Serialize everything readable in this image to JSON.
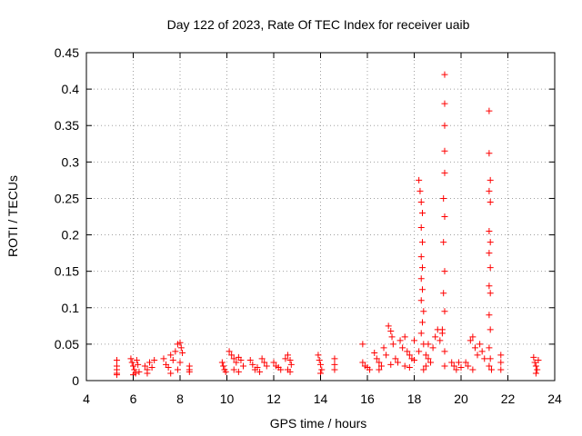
{
  "chart_data": {
    "type": "scatter",
    "title": "Day 122 of 2023, Rate Of TEC Index for receiver uaib",
    "xlabel": "GPS time / hours",
    "ylabel": "ROTI / TECUs",
    "xlim": [
      4,
      24
    ],
    "ylim": [
      0,
      0.45
    ],
    "x_ticks": [
      4,
      6,
      8,
      10,
      12,
      14,
      16,
      18,
      20,
      22,
      24
    ],
    "x_tick_labels": [
      "4",
      "6",
      "8",
      "10",
      "12",
      "14",
      "16",
      "18",
      "20",
      "22",
      "24"
    ],
    "y_ticks": [
      0,
      0.05,
      0.1,
      0.15,
      0.2,
      0.25,
      0.3,
      0.35,
      0.4,
      0.45
    ],
    "y_tick_labels": [
      "0",
      "0.05",
      "0.1",
      "0.15",
      "0.2",
      "0.25",
      "0.3",
      "0.35",
      "0.4",
      "0.45"
    ],
    "grid": true,
    "marker": "+",
    "color": "#ff0000",
    "series": [
      {
        "name": "ROTI",
        "points": [
          [
            5.3,
            0.028
          ],
          [
            5.3,
            0.02
          ],
          [
            5.3,
            0.015
          ],
          [
            5.3,
            0.01
          ],
          [
            5.3,
            0.008
          ],
          [
            5.9,
            0.03
          ],
          [
            5.95,
            0.025
          ],
          [
            6.0,
            0.02
          ],
          [
            6.05,
            0.015
          ],
          [
            6.1,
            0.01
          ],
          [
            6.15,
            0.028
          ],
          [
            6.2,
            0.022
          ],
          [
            6.25,
            0.012
          ],
          [
            6.0,
            0.008
          ],
          [
            6.5,
            0.02
          ],
          [
            6.6,
            0.015
          ],
          [
            6.7,
            0.025
          ],
          [
            6.8,
            0.018
          ],
          [
            6.9,
            0.028
          ],
          [
            6.6,
            0.01
          ],
          [
            7.3,
            0.03
          ],
          [
            7.4,
            0.022
          ],
          [
            7.5,
            0.018
          ],
          [
            7.6,
            0.035
          ],
          [
            7.7,
            0.028
          ],
          [
            7.8,
            0.04
          ],
          [
            7.9,
            0.05
          ],
          [
            8.0,
            0.052
          ],
          [
            8.05,
            0.045
          ],
          [
            8.1,
            0.038
          ],
          [
            8.0,
            0.025
          ],
          [
            7.9,
            0.015
          ],
          [
            7.6,
            0.01
          ],
          [
            8.4,
            0.02
          ],
          [
            8.4,
            0.015
          ],
          [
            8.4,
            0.012
          ],
          [
            9.8,
            0.025
          ],
          [
            9.85,
            0.02
          ],
          [
            9.9,
            0.015
          ],
          [
            9.95,
            0.012
          ],
          [
            10.1,
            0.04
          ],
          [
            10.2,
            0.035
          ],
          [
            10.3,
            0.03
          ],
          [
            10.4,
            0.025
          ],
          [
            10.5,
            0.032
          ],
          [
            10.6,
            0.028
          ],
          [
            10.7,
            0.02
          ],
          [
            10.3,
            0.015
          ],
          [
            10.5,
            0.012
          ],
          [
            11.0,
            0.028
          ],
          [
            11.1,
            0.022
          ],
          [
            11.2,
            0.015
          ],
          [
            11.3,
            0.018
          ],
          [
            11.4,
            0.012
          ],
          [
            11.5,
            0.03
          ],
          [
            11.6,
            0.025
          ],
          [
            11.7,
            0.02
          ],
          [
            12.0,
            0.025
          ],
          [
            12.1,
            0.02
          ],
          [
            12.2,
            0.018
          ],
          [
            12.3,
            0.015
          ],
          [
            12.5,
            0.03
          ],
          [
            12.6,
            0.035
          ],
          [
            12.7,
            0.028
          ],
          [
            12.75,
            0.022
          ],
          [
            12.6,
            0.015
          ],
          [
            12.7,
            0.012
          ],
          [
            13.9,
            0.035
          ],
          [
            13.95,
            0.028
          ],
          [
            14.0,
            0.022
          ],
          [
            14.05,
            0.015
          ],
          [
            14.0,
            0.01
          ],
          [
            14.6,
            0.03
          ],
          [
            14.6,
            0.022
          ],
          [
            14.6,
            0.015
          ],
          [
            15.8,
            0.05
          ],
          [
            15.8,
            0.025
          ],
          [
            15.9,
            0.02
          ],
          [
            16.0,
            0.018
          ],
          [
            16.1,
            0.015
          ],
          [
            16.3,
            0.038
          ],
          [
            16.4,
            0.03
          ],
          [
            16.5,
            0.025
          ],
          [
            16.6,
            0.02
          ],
          [
            16.7,
            0.045
          ],
          [
            16.8,
            0.035
          ],
          [
            16.9,
            0.075
          ],
          [
            17.0,
            0.068
          ],
          [
            17.05,
            0.06
          ],
          [
            17.1,
            0.05
          ],
          [
            17.2,
            0.03
          ],
          [
            17.3,
            0.025
          ],
          [
            17.4,
            0.055
          ],
          [
            17.5,
            0.045
          ],
          [
            17.6,
            0.06
          ],
          [
            17.7,
            0.04
          ],
          [
            17.8,
            0.035
          ],
          [
            17.9,
            0.03
          ],
          [
            18.0,
            0.028
          ],
          [
            18.0,
            0.055
          ],
          [
            17.6,
            0.02
          ],
          [
            17.0,
            0.022
          ],
          [
            16.5,
            0.015
          ],
          [
            17.8,
            0.018
          ],
          [
            18.2,
            0.275
          ],
          [
            18.25,
            0.26
          ],
          [
            18.3,
            0.245
          ],
          [
            18.35,
            0.23
          ],
          [
            18.3,
            0.21
          ],
          [
            18.35,
            0.19
          ],
          [
            18.3,
            0.17
          ],
          [
            18.35,
            0.155
          ],
          [
            18.3,
            0.14
          ],
          [
            18.35,
            0.125
          ],
          [
            18.3,
            0.11
          ],
          [
            18.4,
            0.095
          ],
          [
            18.35,
            0.08
          ],
          [
            18.3,
            0.065
          ],
          [
            18.4,
            0.05
          ],
          [
            18.2,
            0.04
          ],
          [
            18.5,
            0.035
          ],
          [
            18.6,
            0.03
          ],
          [
            18.7,
            0.025
          ],
          [
            18.5,
            0.02
          ],
          [
            18.4,
            0.015
          ],
          [
            18.6,
            0.05
          ],
          [
            18.8,
            0.045
          ],
          [
            18.9,
            0.06
          ],
          [
            19.0,
            0.07
          ],
          [
            19.1,
            0.055
          ],
          [
            19.2,
            0.065
          ],
          [
            19.3,
            0.42
          ],
          [
            19.3,
            0.38
          ],
          [
            19.3,
            0.35
          ],
          [
            19.3,
            0.315
          ],
          [
            19.3,
            0.285
          ],
          [
            19.25,
            0.25
          ],
          [
            19.3,
            0.225
          ],
          [
            19.25,
            0.19
          ],
          [
            19.3,
            0.15
          ],
          [
            19.25,
            0.12
          ],
          [
            19.3,
            0.095
          ],
          [
            19.2,
            0.07
          ],
          [
            19.3,
            0.04
          ],
          [
            19.3,
            0.02
          ],
          [
            19.6,
            0.025
          ],
          [
            19.7,
            0.02
          ],
          [
            19.8,
            0.015
          ],
          [
            19.9,
            0.025
          ],
          [
            20.0,
            0.018
          ],
          [
            20.2,
            0.025
          ],
          [
            20.3,
            0.02
          ],
          [
            20.4,
            0.055
          ],
          [
            20.5,
            0.06
          ],
          [
            20.6,
            0.045
          ],
          [
            20.7,
            0.035
          ],
          [
            20.8,
            0.05
          ],
          [
            20.9,
            0.04
          ],
          [
            21.0,
            0.03
          ],
          [
            20.5,
            0.015
          ],
          [
            21.2,
            0.37
          ],
          [
            21.2,
            0.312
          ],
          [
            21.25,
            0.275
          ],
          [
            21.2,
            0.26
          ],
          [
            21.25,
            0.245
          ],
          [
            21.2,
            0.205
          ],
          [
            21.25,
            0.19
          ],
          [
            21.2,
            0.175
          ],
          [
            21.25,
            0.155
          ],
          [
            21.2,
            0.13
          ],
          [
            21.25,
            0.12
          ],
          [
            21.2,
            0.09
          ],
          [
            21.25,
            0.07
          ],
          [
            21.2,
            0.045
          ],
          [
            21.25,
            0.03
          ],
          [
            21.2,
            0.02
          ],
          [
            21.3,
            0.015
          ],
          [
            21.7,
            0.035
          ],
          [
            21.7,
            0.025
          ],
          [
            21.7,
            0.015
          ],
          [
            23.1,
            0.032
          ],
          [
            23.15,
            0.025
          ],
          [
            23.2,
            0.02
          ],
          [
            23.25,
            0.015
          ],
          [
            23.2,
            0.01
          ],
          [
            23.3,
            0.028
          ]
        ]
      }
    ]
  }
}
